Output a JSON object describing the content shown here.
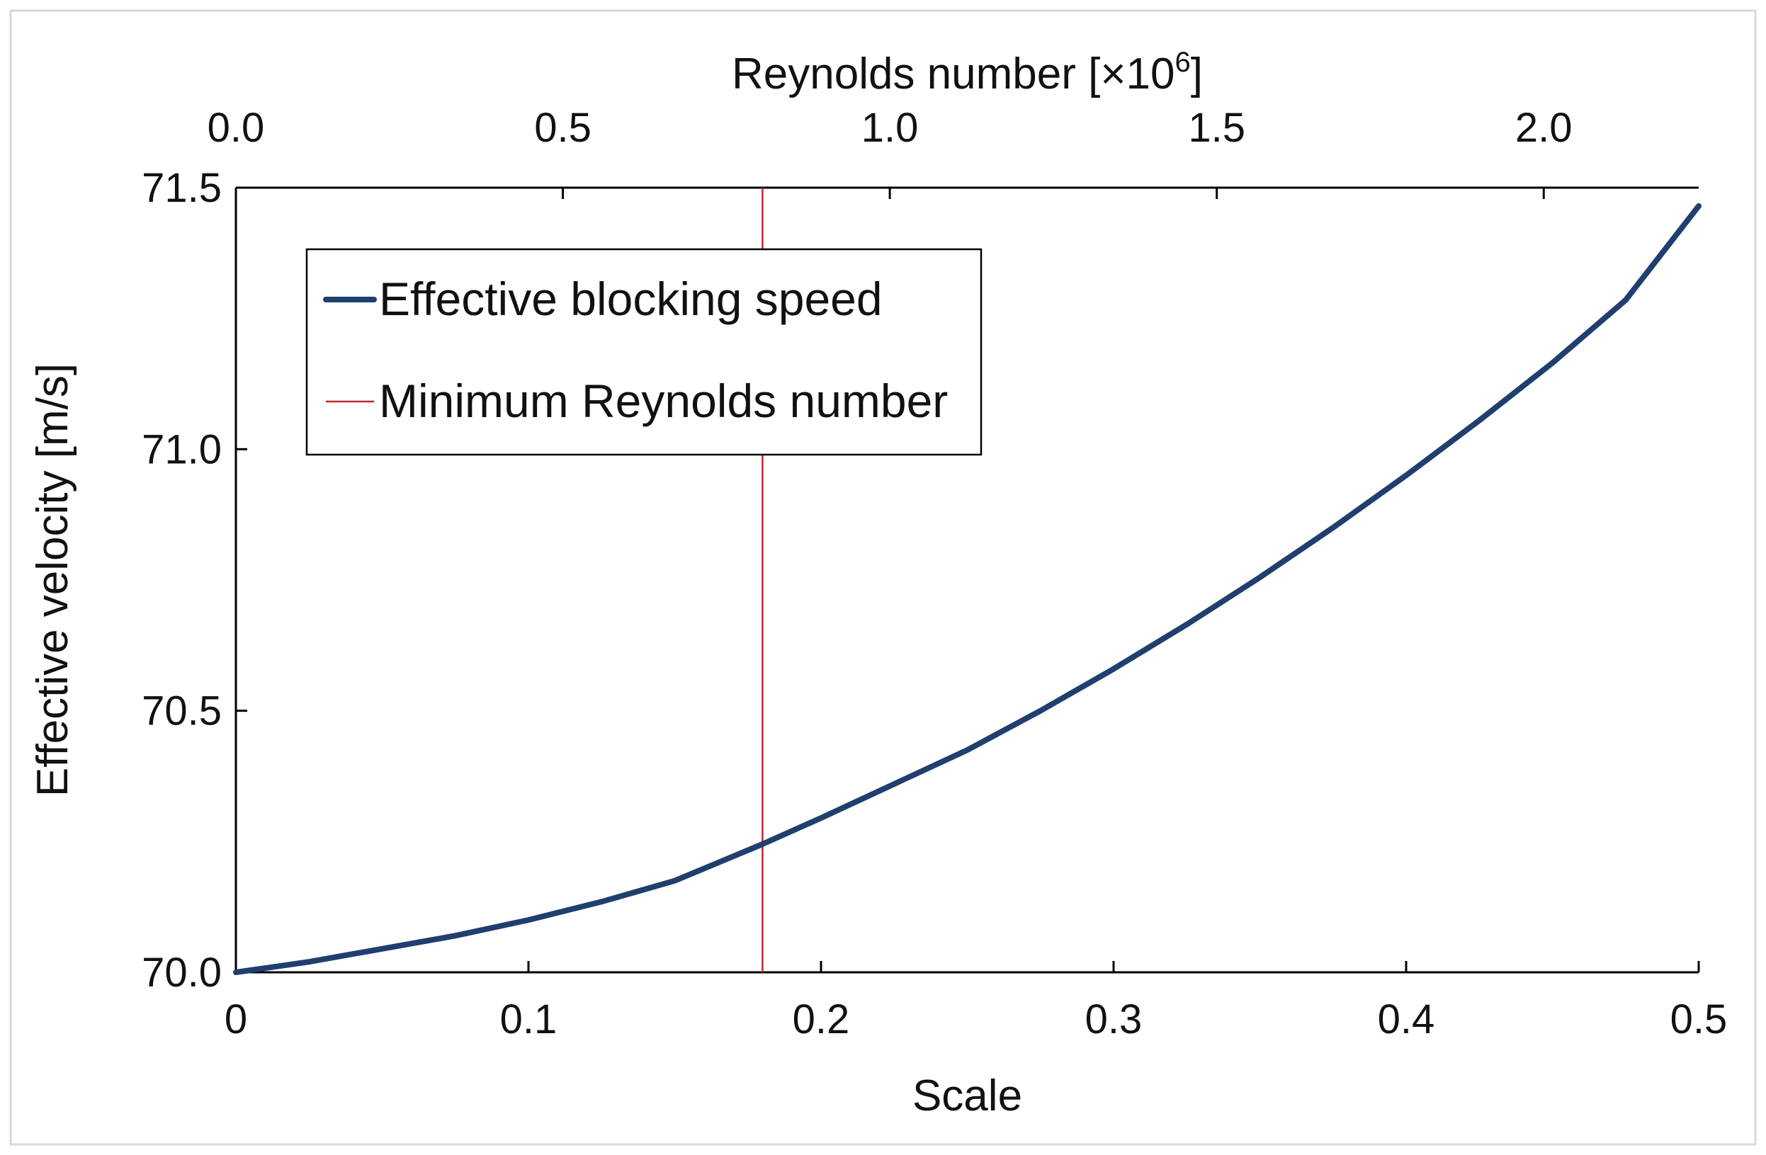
{
  "chart_data": {
    "type": "line",
    "title": "",
    "xlabel": "Scale",
    "ylabel": "Effective velocity [m/s]",
    "x2label_main": "Reynolds number [×10",
    "x2label_exp": "6",
    "x2label_close": "]",
    "xlim": [
      0,
      0.5
    ],
    "ylim": [
      70.0,
      71.5
    ],
    "x2lim": [
      0,
      2.237
    ],
    "xticks": [
      0,
      0.1,
      0.2,
      0.3,
      0.4,
      0.5
    ],
    "xtick_labels": [
      "0",
      "0.1",
      "0.2",
      "0.3",
      "0.4",
      "0.5"
    ],
    "yticks": [
      70.0,
      70.5,
      71.0,
      71.5
    ],
    "ytick_labels": [
      "70.0",
      "70.5",
      "71.0",
      "71.5"
    ],
    "x2ticks": [
      0.0,
      0.5,
      1.0,
      1.5,
      2.0
    ],
    "x2tick_labels": [
      "0.0",
      "0.5",
      "1.0",
      "1.5",
      "2.0"
    ],
    "grid": false,
    "legend_position": "top-left",
    "series": [
      {
        "name": "Effective blocking speed",
        "color": "#1f3f6e",
        "x": [
          0,
          0.025,
          0.05,
          0.075,
          0.1,
          0.125,
          0.15,
          0.18,
          0.2,
          0.225,
          0.25,
          0.275,
          0.3,
          0.325,
          0.35,
          0.375,
          0.4,
          0.425,
          0.45,
          0.475,
          0.5
        ],
        "y": [
          70.0,
          70.02,
          70.045,
          70.07,
          70.1,
          70.135,
          70.175,
          70.245,
          70.295,
          70.36,
          70.425,
          70.5,
          70.58,
          70.665,
          70.755,
          70.85,
          70.95,
          71.055,
          71.165,
          71.285,
          71.465
        ]
      }
    ],
    "vlines": [
      {
        "name": "Minimum Reynolds number",
        "color": "#c0272d",
        "x": 0.18
      }
    ]
  }
}
